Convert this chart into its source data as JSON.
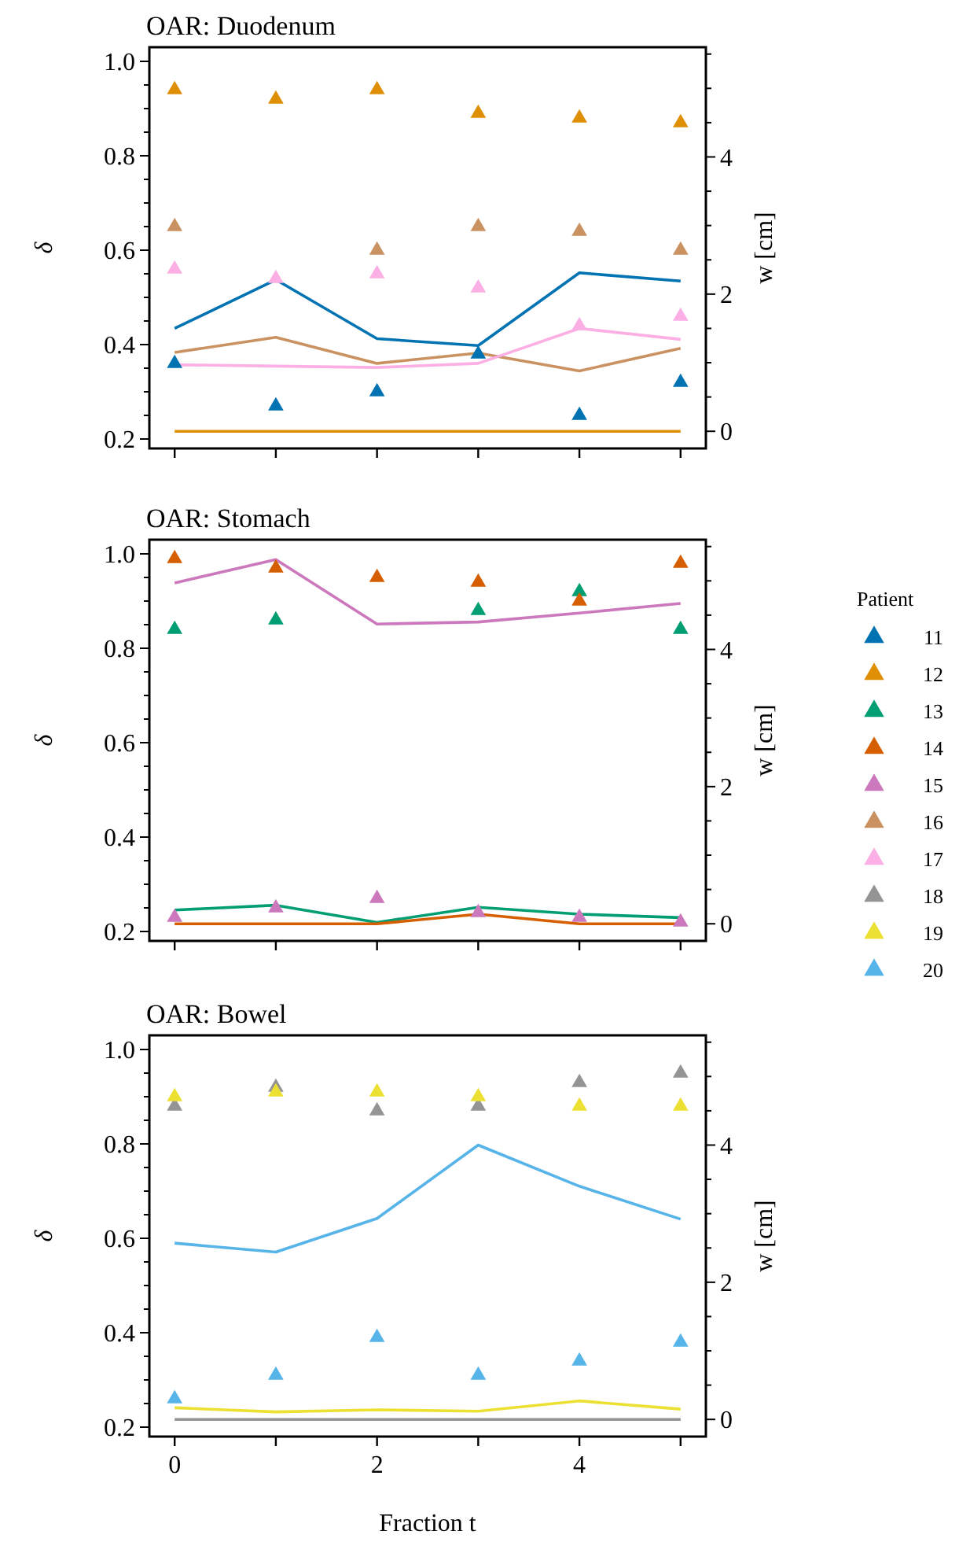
{
  "chart_data": [
    {
      "type": "scatter",
      "title": "OAR: Duodenum",
      "ylabel": "δ",
      "y2label": "w [cm]",
      "grid": false,
      "legend": "right",
      "tick_labels": "y",
      "x": [
        0,
        1,
        2,
        3,
        4,
        5
      ],
      "xlim": [
        -0.25,
        5.25
      ],
      "xticks": [
        0,
        {
          "value": 1,
          "label": null
        },
        2,
        {
          "value": 3,
          "label": null
        },
        4,
        {
          "value": 5,
          "label": null
        }
      ],
      "ylim": [
        0.18,
        1.03
      ],
      "yticks": [
        0.2,
        {
          "value": 0.25,
          "label": null
        },
        {
          "value": 0.3,
          "label": null
        },
        {
          "value": 0.35,
          "label": null
        },
        0.4,
        {
          "value": 0.45,
          "label": null
        },
        {
          "value": 0.5,
          "label": null
        },
        {
          "value": 0.55,
          "label": null
        },
        0.6,
        {
          "value": 0.65,
          "label": null
        },
        {
          "value": 0.7,
          "label": null
        },
        {
          "value": 0.75,
          "label": null
        },
        0.8,
        {
          "value": 0.85,
          "label": null
        },
        {
          "value": 0.9,
          "label": null
        },
        {
          "value": 0.95,
          "label": null
        },
        {
          "value": 1.0,
          "label": "1.0"
        }
      ],
      "y2lim": [
        -0.25,
        5.6
      ],
      "y2ticks": [
        0,
        {
          "value": 0.5,
          "label": null
        },
        {
          "value": 1,
          "label": null
        },
        {
          "value": 1.5,
          "label": null
        },
        2,
        {
          "value": 2.5,
          "label": null
        },
        {
          "value": 3,
          "label": null
        },
        {
          "value": 3.5,
          "label": null
        },
        4,
        {
          "value": 4.5,
          "label": null
        },
        {
          "value": 5,
          "label": null
        },
        {
          "value": 5.5,
          "label": null
        }
      ],
      "series": [
        {
          "type": "line",
          "axis": "y2",
          "color": "#0173b2",
          "values": [
            1.5,
            2.21,
            1.35,
            1.25,
            2.31,
            2.19
          ]
        },
        {
          "type": "line",
          "axis": "y2",
          "color": "#ca9161",
          "values": [
            1.15,
            1.37,
            0.99,
            1.14,
            0.88,
            1.21
          ]
        },
        {
          "type": "line",
          "axis": "y2",
          "color": "#fbafe4",
          "values": [
            0.97,
            0.95,
            0.93,
            0.99,
            1.5,
            1.34
          ]
        },
        {
          "type": "line",
          "axis": "y2",
          "color": "#de8f05",
          "values": [
            0,
            0,
            0,
            0,
            0,
            0
          ]
        },
        {
          "name": "11",
          "marker": "triangle",
          "color": "#0173b2",
          "values": [
            0.36,
            0.27,
            0.3,
            0.38,
            0.25,
            0.32
          ]
        },
        {
          "name": "12",
          "marker": "triangle",
          "color": "#de8f05",
          "values": [
            0.94,
            0.92,
            0.94,
            0.89,
            0.88,
            0.87
          ]
        },
        {
          "name": "16",
          "marker": "triangle",
          "color": "#ca9161",
          "values": [
            0.65,
            null,
            0.6,
            0.65,
            0.64,
            0.6
          ]
        },
        {
          "name": "17",
          "marker": "triangle",
          "color": "#fbafe4",
          "values": [
            0.56,
            0.54,
            0.55,
            0.52,
            0.44,
            0.46
          ]
        }
      ]
    },
    {
      "type": "scatter",
      "title": "OAR: Stomach",
      "ylabel": "δ",
      "y2label": "w [cm]",
      "grid": false,
      "legend": "right",
      "legend_title": "Patient",
      "tick_labels": "y",
      "x": [
        0,
        1,
        2,
        3,
        4,
        5
      ],
      "xlim": [
        -0.25,
        5.25
      ],
      "xticks": [
        0,
        {
          "value": 1,
          "label": null
        },
        2,
        {
          "value": 3,
          "label": null
        },
        4,
        {
          "value": 5,
          "label": null
        }
      ],
      "ylim": [
        0.18,
        1.03
      ],
      "yticks": [
        0.2,
        {
          "value": 0.25,
          "label": null
        },
        {
          "value": 0.3,
          "label": null
        },
        {
          "value": 0.35,
          "label": null
        },
        0.4,
        {
          "value": 0.45,
          "label": null
        },
        {
          "value": 0.5,
          "label": null
        },
        {
          "value": 0.55,
          "label": null
        },
        0.6,
        {
          "value": 0.65,
          "label": null
        },
        {
          "value": 0.7,
          "label": null
        },
        {
          "value": 0.75,
          "label": null
        },
        0.8,
        {
          "value": 0.85,
          "label": null
        },
        {
          "value": 0.9,
          "label": null
        },
        {
          "value": 0.95,
          "label": null
        },
        {
          "value": 1.0,
          "label": "1.0"
        }
      ],
      "y2lim": [
        -0.25,
        5.6
      ],
      "y2ticks": [
        0,
        {
          "value": 0.5,
          "label": null
        },
        {
          "value": 1,
          "label": null
        },
        {
          "value": 1.5,
          "label": null
        },
        2,
        {
          "value": 2.5,
          "label": null
        },
        {
          "value": 3,
          "label": null
        },
        {
          "value": 3.5,
          "label": null
        },
        4,
        {
          "value": 4.5,
          "label": null
        },
        {
          "value": 5,
          "label": null
        },
        {
          "value": 5.5,
          "label": null
        }
      ],
      "series": [
        {
          "type": "line",
          "axis": "y2",
          "color": "#cc78bc",
          "values": [
            4.97,
            5.31,
            4.37,
            4.4,
            4.53,
            4.67
          ]
        },
        {
          "type": "line",
          "axis": "y2",
          "color": "#029e73",
          "values": [
            0.2,
            0.27,
            0.02,
            0.24,
            0.14,
            0.09
          ]
        },
        {
          "type": "line",
          "axis": "y2",
          "color": "#d55e00",
          "values": [
            0,
            0,
            0,
            0.14,
            0,
            0
          ]
        },
        {
          "name": "13",
          "marker": "triangle",
          "color": "#029e73",
          "values": [
            0.84,
            0.86,
            null,
            0.88,
            0.92,
            0.84
          ]
        },
        {
          "name": "14",
          "marker": "triangle",
          "color": "#d55e00",
          "values": [
            0.99,
            0.97,
            0.95,
            0.94,
            0.9,
            0.98
          ]
        },
        {
          "name": "15",
          "marker": "triangle",
          "color": "#cc78bc",
          "values": [
            0.23,
            0.25,
            0.27,
            0.24,
            0.23,
            0.22
          ]
        }
      ]
    },
    {
      "type": "scatter",
      "title": "OAR: Bowel",
      "xlabel": "Fraction t",
      "ylabel": "δ",
      "y2label": "w [cm]",
      "grid": false,
      "legend": "right",
      "x": [
        0,
        1,
        2,
        3,
        4,
        5
      ],
      "xlim": [
        -0.25,
        5.25
      ],
      "xticks": [
        0,
        {
          "value": 1,
          "label": null
        },
        2,
        {
          "value": 3,
          "label": null
        },
        4,
        {
          "value": 5,
          "label": null
        }
      ],
      "ylim": [
        0.18,
        1.03
      ],
      "yticks": [
        0.2,
        {
          "value": 0.25,
          "label": null
        },
        {
          "value": 0.3,
          "label": null
        },
        {
          "value": 0.35,
          "label": null
        },
        0.4,
        {
          "value": 0.45,
          "label": null
        },
        {
          "value": 0.5,
          "label": null
        },
        {
          "value": 0.55,
          "label": null
        },
        0.6,
        {
          "value": 0.65,
          "label": null
        },
        {
          "value": 0.7,
          "label": null
        },
        {
          "value": 0.75,
          "label": null
        },
        0.8,
        {
          "value": 0.85,
          "label": null
        },
        {
          "value": 0.9,
          "label": null
        },
        {
          "value": 0.95,
          "label": null
        },
        {
          "value": 1.0,
          "label": "1.0"
        }
      ],
      "y2lim": [
        -0.25,
        5.6
      ],
      "y2ticks": [
        0,
        {
          "value": 0.5,
          "label": null
        },
        {
          "value": 1,
          "label": null
        },
        {
          "value": 1.5,
          "label": null
        },
        2,
        {
          "value": 2.5,
          "label": null
        },
        {
          "value": 3,
          "label": null
        },
        {
          "value": 3.5,
          "label": null
        },
        4,
        {
          "value": 4.5,
          "label": null
        },
        {
          "value": 5,
          "label": null
        },
        {
          "value": 5.5,
          "label": null
        }
      ],
      "series": [
        {
          "type": "line",
          "axis": "y2",
          "color": "#56b4e9",
          "values": [
            2.57,
            2.44,
            2.93,
            4.0,
            3.4,
            2.92
          ]
        },
        {
          "type": "line",
          "axis": "y2",
          "color": "#ece133",
          "values": [
            0.17,
            0.11,
            0.14,
            0.12,
            0.27,
            0.15
          ]
        },
        {
          "type": "line",
          "axis": "y2",
          "color": "#949494",
          "values": [
            0,
            0,
            0,
            0,
            0,
            0
          ]
        },
        {
          "name": "18",
          "marker": "triangle",
          "color": "#949494",
          "values": [
            0.88,
            0.92,
            0.87,
            0.88,
            0.93,
            0.95
          ]
        },
        {
          "name": "19",
          "marker": "triangle",
          "color": "#ece133",
          "values": [
            0.9,
            0.91,
            0.91,
            0.9,
            0.88,
            0.88
          ]
        },
        {
          "name": "20",
          "marker": "triangle",
          "color": "#56b4e9",
          "values": [
            0.26,
            0.31,
            0.39,
            0.31,
            0.34,
            0.38
          ]
        }
      ]
    }
  ]
}
